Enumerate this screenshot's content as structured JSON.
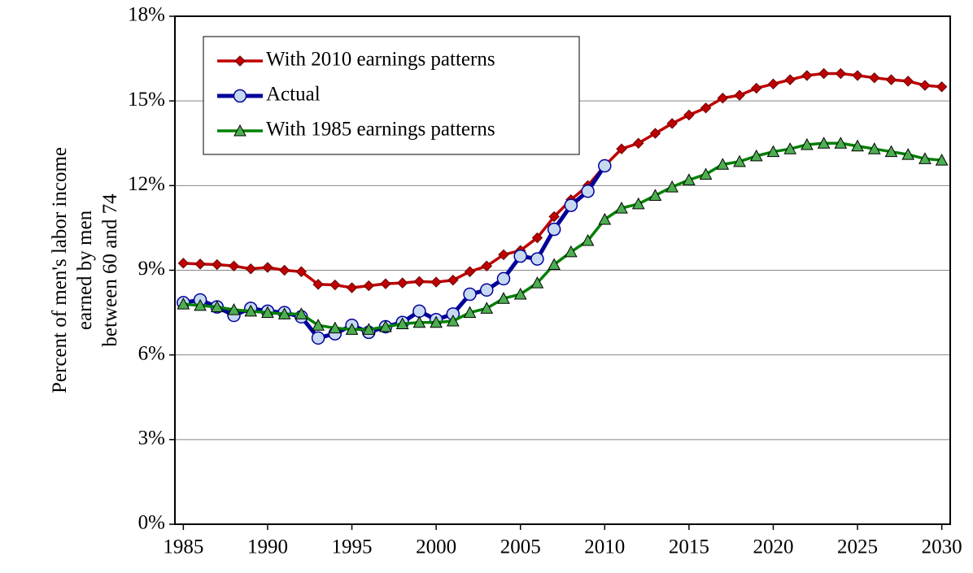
{
  "chart_data": {
    "type": "line",
    "ylabel": [
      "Percent of men's labor income",
      "earned by men",
      "between 60 and 74"
    ],
    "x": [
      1985,
      1986,
      1987,
      1988,
      1989,
      1990,
      1991,
      1992,
      1993,
      1994,
      1995,
      1996,
      1997,
      1998,
      1999,
      2000,
      2001,
      2002,
      2003,
      2004,
      2005,
      2006,
      2007,
      2008,
      2009,
      2010,
      2011,
      2012,
      2013,
      2014,
      2015,
      2016,
      2017,
      2018,
      2019,
      2020,
      2021,
      2022,
      2023,
      2024,
      2025,
      2026,
      2027,
      2028,
      2029,
      2030
    ],
    "series": [
      {
        "name": "With 2010 earnings patterns",
        "color": "#c00000",
        "marker": "diamond",
        "values": [
          9.25,
          9.22,
          9.2,
          9.15,
          9.05,
          9.1,
          9.0,
          8.95,
          8.5,
          8.48,
          8.38,
          8.45,
          8.52,
          8.55,
          8.6,
          8.58,
          8.65,
          8.95,
          9.15,
          9.55,
          9.7,
          10.15,
          10.9,
          11.5,
          12.0,
          12.7,
          13.3,
          13.5,
          13.85,
          14.2,
          14.5,
          14.75,
          15.1,
          15.2,
          15.45,
          15.6,
          15.75,
          15.9,
          15.97,
          15.97,
          15.9,
          15.82,
          15.75,
          15.7,
          15.55,
          15.5
        ]
      },
      {
        "name": "Actual",
        "color": "#000099",
        "marker": "circle",
        "values": [
          7.85,
          7.95,
          7.7,
          7.4,
          7.65,
          7.55,
          7.5,
          7.35,
          6.6,
          6.75,
          7.05,
          6.8,
          7.0,
          7.15,
          7.55,
          7.25,
          7.45,
          8.15,
          8.3,
          8.7,
          9.5,
          9.4,
          10.45,
          11.3,
          11.8,
          12.7,
          null,
          null,
          null,
          null,
          null,
          null,
          null,
          null,
          null,
          null,
          null,
          null,
          null,
          null,
          null,
          null,
          null,
          null,
          null,
          null
        ]
      },
      {
        "name": "With 1985 earnings patterns",
        "color": "#008000",
        "marker": "triangle",
        "values": [
          7.8,
          7.75,
          7.7,
          7.6,
          7.55,
          7.5,
          7.45,
          7.45,
          7.05,
          6.95,
          6.9,
          6.9,
          7.0,
          7.1,
          7.15,
          7.15,
          7.2,
          7.5,
          7.65,
          8.0,
          8.15,
          8.55,
          9.2,
          9.65,
          10.05,
          10.8,
          11.2,
          11.35,
          11.65,
          11.95,
          12.2,
          12.4,
          12.75,
          12.85,
          13.05,
          13.2,
          13.3,
          13.45,
          13.5,
          13.5,
          13.4,
          13.3,
          13.2,
          13.1,
          12.95,
          12.9
        ]
      }
    ],
    "xlim": [
      1984.5,
      2030.5
    ],
    "xticks": [
      1985,
      1990,
      1995,
      2000,
      2005,
      2010,
      2015,
      2020,
      2025,
      2030
    ],
    "ylim": [
      0,
      18
    ],
    "yticks": [
      {
        "value": 0,
        "label": "0%"
      },
      {
        "value": 3,
        "label": "3%"
      },
      {
        "value": 6,
        "label": "6%"
      },
      {
        "value": 9,
        "label": "9%"
      },
      {
        "value": 12,
        "label": "12%"
      },
      {
        "value": 15,
        "label": "15%"
      },
      {
        "value": 18,
        "label": "18%"
      }
    ],
    "grid": true,
    "legend": "upper left"
  }
}
